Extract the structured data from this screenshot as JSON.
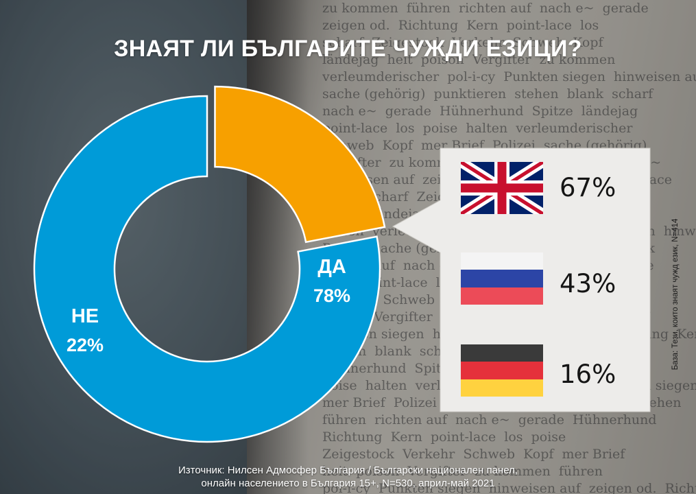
{
  "title": "ЗНАЯТ ЛИ БЪЛГАРИТЕ ЧУЖДИ ЕЗИЦИ?",
  "colors": {
    "yes": "#009BD8",
    "no": "#F7A000",
    "panel": "#EDECEA",
    "title": "#FFFFFF"
  },
  "chart_data": [
    {
      "type": "pie",
      "variant": "donut",
      "categories": [
        "ДА",
        "НЕ"
      ],
      "values": [
        78,
        22
      ],
      "labels": [
        "78%",
        "22%"
      ],
      "colors": [
        "#009BD8",
        "#F7A000"
      ]
    },
    {
      "type": "table",
      "rows": [
        {
          "flag_icon": "uk-flag-icon",
          "value": 67,
          "label": "67%"
        },
        {
          "flag_icon": "russia-flag-icon",
          "value": 43,
          "label": "43%"
        },
        {
          "flag_icon": "germany-flag-icon",
          "value": 16,
          "label": "16%"
        }
      ],
      "base_note": "База: Тези, които знаят чужд език, N=414"
    }
  ],
  "source": {
    "line1": "Източник: Нилсен Адмосфер България / Български национален панел,",
    "line2": "онлайн населението в България 15+, N=530, април-май 2021"
  }
}
